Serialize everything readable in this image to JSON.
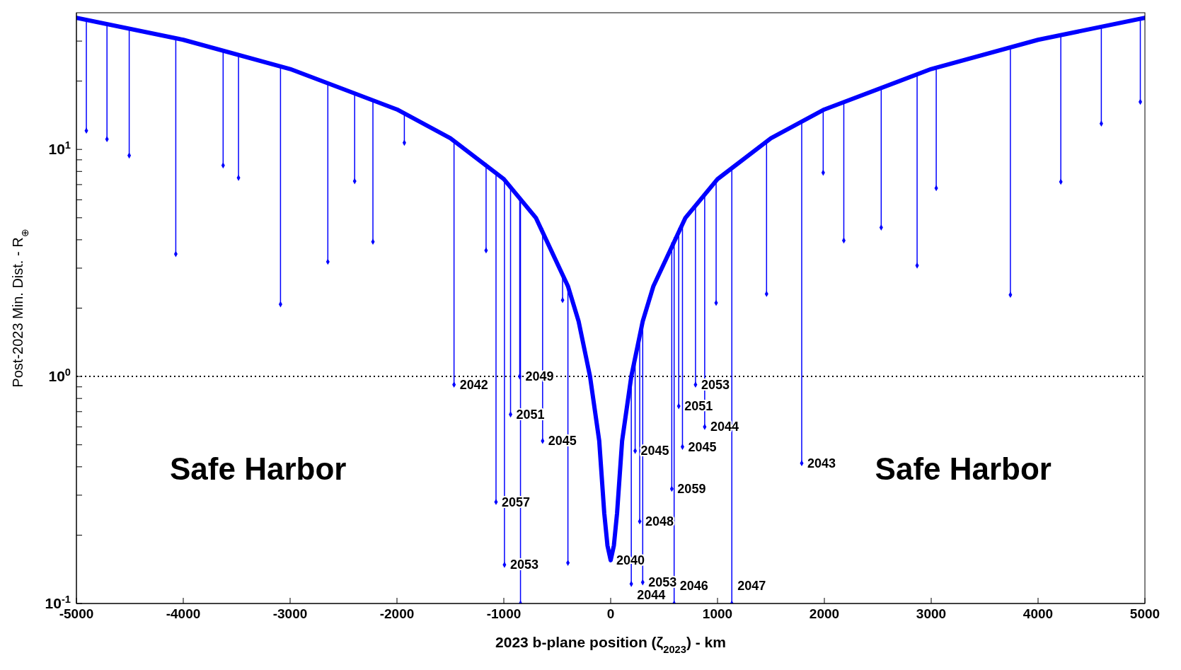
{
  "chart_data": {
    "type": "line",
    "xlabel": "2023 b-plane position (ζ$_{2023}$) - km",
    "ylabel": "Post-2023 Min. Dist. - R$_{⊕}$",
    "log": "y",
    "legend": false,
    "xlim": [
      -5000,
      5000
    ],
    "xticks": [
      -5000,
      -4000,
      -3000,
      -2000,
      -1000,
      0,
      1000,
      2000,
      3000,
      4000,
      5000
    ],
    "ylim": [
      0.1,
      40
    ],
    "yticks": [
      {
        "value": 0.1,
        "label": "10$^{-1}$"
      },
      {
        "value": 0.2,
        "label": null
      },
      {
        "value": 0.3,
        "label": null
      },
      {
        "value": 0.4,
        "label": null
      },
      {
        "value": 0.5,
        "label": null
      },
      {
        "value": 0.6,
        "label": null
      },
      {
        "value": 0.7,
        "label": null
      },
      {
        "value": 0.8,
        "label": null
      },
      {
        "value": 0.9,
        "label": null
      },
      {
        "value": 1,
        "label": "10$^{0}$"
      },
      {
        "value": 2,
        "label": null
      },
      {
        "value": 3,
        "label": null
      },
      {
        "value": 4,
        "label": null
      },
      {
        "value": 5,
        "label": null
      },
      {
        "value": 6,
        "label": null
      },
      {
        "value": 7,
        "label": null
      },
      {
        "value": 8,
        "label": null
      },
      {
        "value": 9,
        "label": null
      },
      {
        "value": 10,
        "label": "10$^{1}$"
      },
      {
        "value": 20,
        "label": null
      },
      {
        "value": 30,
        "label": null
      }
    ],
    "ref_lines": [
      {
        "axis": "y",
        "value": 1,
        "color": "#000000",
        "line_style": "dotted"
      }
    ],
    "series": [
      {
        "color": "#0000ff",
        "x": [
          -5000,
          -4000,
          -3000,
          -2000,
          -1500,
          -1000,
          -700,
          -400,
          -300,
          -193,
          -107,
          -60,
          -30,
          0,
          30,
          60,
          107,
          193,
          300,
          400,
          700,
          1000,
          1500,
          2000,
          3000,
          4000,
          5000
        ],
        "values": [
          38,
          30.4,
          22.6,
          15,
          11.2,
          7.4,
          5.0,
          2.5,
          1.75,
          1.0,
          0.52,
          0.25,
          0.18,
          0.155,
          0.18,
          0.25,
          0.52,
          1.0,
          1.75,
          2.5,
          5.0,
          7.4,
          11.2,
          15,
          22.6,
          30.4,
          38
        ]
      },
      {
        "type": "scatter",
        "color": "#0000ff",
        "marker": "diamond",
        "x": [
          -4907,
          -4714,
          -4506,
          -4070,
          -3627,
          -3483,
          -3090,
          -2647,
          -2396,
          -2225,
          -1931,
          -1466,
          -1166,
          -1073,
          -994,
          -937,
          -851,
          -844,
          -637,
          -450,
          -400,
          193,
          229,
          272,
          300,
          572,
          594,
          637,
          672,
          794,
          880,
          987,
          1134,
          1459,
          1788,
          1989,
          2182,
          2532,
          2868,
          3047,
          3741,
          4213,
          4592,
          4957
        ],
        "values": [
          12.1,
          11.1,
          9.4,
          3.46,
          8.5,
          7.5,
          2.08,
          3.2,
          7.25,
          3.92,
          10.7,
          0.92,
          3.59,
          0.28,
          0.148,
          0.68,
          1.0,
          0.1,
          0.52,
          2.17,
          0.151,
          0.122,
          0.47,
          0.23,
          0.124,
          0.32,
          0.1,
          0.74,
          0.49,
          0.92,
          0.6,
          2.11,
          0.1,
          2.31,
          0.415,
          7.9,
          3.97,
          4.53,
          3.08,
          6.75,
          2.29,
          7.2,
          13.0,
          16.2
        ],
        "errors": [
          [
            12.1,
            37.3
          ],
          [
            11.1,
            35.8
          ],
          [
            9.4,
            34.2
          ],
          [
            3.46,
            30.9
          ],
          [
            8.5,
            27.4
          ],
          [
            7.5,
            26.3
          ],
          [
            2.08,
            23.3
          ],
          [
            3.2,
            19.9
          ],
          [
            7.25,
            18.0
          ],
          [
            3.92,
            16.7
          ],
          [
            10.7,
            14.5
          ],
          [
            0.92,
            10.9
          ],
          [
            3.59,
            8.7
          ],
          [
            0.28,
            8.0
          ],
          [
            0.148,
            7.35
          ],
          [
            0.68,
            6.9
          ],
          [
            1.0,
            6.2
          ],
          [
            0.1,
            6.15
          ],
          [
            0.52,
            4.5
          ],
          [
            2.17,
            2.9
          ],
          [
            0.151,
            2.5
          ],
          [
            0.122,
            1.0
          ],
          [
            0.47,
            1.25
          ],
          [
            0.23,
            1.55
          ],
          [
            0.124,
            1.75
          ],
          [
            0.32,
            3.9
          ],
          [
            0.1,
            4.1
          ],
          [
            0.74,
            4.5
          ],
          [
            0.49,
            4.77
          ],
          [
            0.92,
            5.75
          ],
          [
            0.6,
            6.45
          ],
          [
            2.11,
            7.3
          ],
          [
            0.1,
            8.4
          ],
          [
            2.31,
            10.9
          ],
          [
            0.415,
            13.4
          ],
          [
            7.9,
            14.9
          ],
          [
            3.97,
            16.4
          ],
          [
            4.53,
            19.0
          ],
          [
            3.08,
            21.6
          ],
          [
            6.75,
            23.0
          ],
          [
            2.29,
            28.3
          ],
          [
            7.2,
            32.0
          ],
          [
            13.0,
            34.9
          ],
          [
            16.2,
            37.7
          ]
        ]
      }
    ],
    "annotations": [
      "Safe Harbor",
      "Safe Harbor",
      {
        "text": "2042",
        "x": -1466,
        "y": 0.92
      },
      {
        "text": "2049",
        "x": -851,
        "y": 1.0
      },
      {
        "text": "2051",
        "x": -937,
        "y": 0.68
      },
      {
        "text": "2045",
        "x": -637,
        "y": 0.52
      },
      {
        "text": "2057",
        "x": -1073,
        "y": 0.28
      },
      {
        "text": "2053",
        "x": -994,
        "y": 0.148
      },
      {
        "text": "2040",
        "x": 0,
        "y": 0.155
      },
      {
        "text": "2053",
        "x": 794,
        "y": 0.92
      },
      {
        "text": "2051",
        "x": 637,
        "y": 0.74
      },
      {
        "text": "2044",
        "x": 880,
        "y": 0.6
      },
      {
        "text": "2045",
        "x": 672,
        "y": 0.49
      },
      {
        "text": "2045",
        "x": 229,
        "y": 0.47
      },
      {
        "text": "2043",
        "x": 1788,
        "y": 0.415
      },
      {
        "text": "2059",
        "x": 572,
        "y": 0.32
      },
      {
        "text": "2048",
        "x": 272,
        "y": 0.23
      },
      {
        "text": "2053",
        "x": 300,
        "y": 0.124
      },
      {
        "text": "2044",
        "x": 193,
        "y": 0.122
      },
      {
        "text": "2046",
        "x": 594,
        "y": 0.12
      },
      {
        "text": "2047",
        "x": 1134,
        "y": 0.12
      }
    ]
  }
}
